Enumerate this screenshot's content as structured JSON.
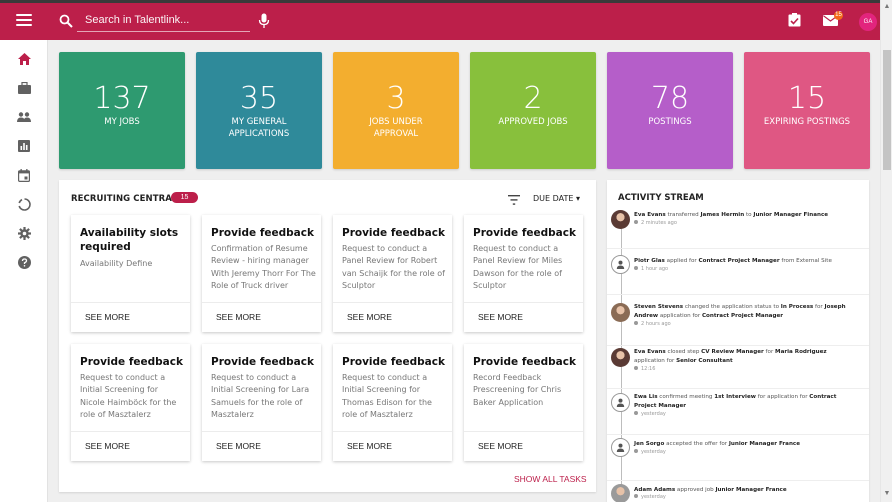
{
  "topbar": {
    "search_placeholder": "Search in Talentlink...",
    "mail_badge": "15",
    "user_initials": "GA",
    "accent_color": "#bc1f4a"
  },
  "sidebar": {
    "items": [
      {
        "icon": "home-icon",
        "active": true
      },
      {
        "icon": "briefcase-icon"
      },
      {
        "icon": "people-icon"
      },
      {
        "icon": "reports-icon"
      },
      {
        "icon": "calendar-icon"
      },
      {
        "icon": "loading-circle-icon"
      },
      {
        "icon": "gear-icon"
      },
      {
        "icon": "help-icon"
      }
    ]
  },
  "stats": [
    {
      "value": "137",
      "label": "MY JOBS",
      "color": "#2e9a70"
    },
    {
      "value": "35",
      "label": "MY GENERAL APPLICATIONS",
      "color": "#2f8a9a"
    },
    {
      "value": "3",
      "label": "JOBS UNDER APPROVAL",
      "color": "#f3ae2f"
    },
    {
      "value": "2",
      "label": "APPROVED JOBS",
      "color": "#88c03c"
    },
    {
      "value": "78",
      "label": "POSTINGS",
      "color": "#b55ec9"
    },
    {
      "value": "15",
      "label": "EXPIRING POSTINGS",
      "color": "#df5783"
    }
  ],
  "recruiting_central": {
    "title": "RECRUITING CENTRAL",
    "count": "15",
    "sort_label": "DUE DATE ▾",
    "show_all_label": "SHOW ALL TASKS",
    "see_more_label": "SEE MORE",
    "tasks": [
      {
        "title": "Availability slots required",
        "desc": "Availability Define"
      },
      {
        "title": "Provide feedback",
        "desc": "Confirmation of Resume Review - hiring manager With Jeremy Thorr For The Role of Truck driver"
      },
      {
        "title": "Provide feedback",
        "desc": "Request to conduct a Panel Review for Robert van Schaijk for the role of Sculptor"
      },
      {
        "title": "Provide feedback",
        "desc": "Request to conduct a Panel Review for Miles Dawson for the role of Sculptor"
      },
      {
        "title": "Provide feedback",
        "desc": "Request to conduct a Initial Screening for Nicole Haimböck for the role of Masztalerz"
      },
      {
        "title": "Provide feedback",
        "desc": "Request to conduct a Initial Screening for Lara Samuels for the role of Masztalerz"
      },
      {
        "title": "Provide feedback",
        "desc": "Request to conduct a Initial Screening for Thomas Edison for the role of Masztalerz"
      },
      {
        "title": "Provide feedback",
        "desc": "Record Feedback Prescreening for Chris Baker Application"
      }
    ]
  },
  "activity_stream": {
    "title": "ACTIVITY STREAM",
    "items": [
      {
        "actor": "Eva Evans",
        "parts": [
          " transferred ",
          "James Hermin",
          " to ",
          "Junior Manager Finance"
        ],
        "time": "2 minutes ago",
        "avatar": "photo-woman"
      },
      {
        "actor": "Piotr Glas",
        "parts": [
          " applied for ",
          "Contract Project Manager",
          " from External Site",
          ""
        ],
        "time": "1 hour ago",
        "avatar": "person-icon"
      },
      {
        "actor": "Steven Stevens",
        "parts": [
          " changed the application status to ",
          "In Process",
          " for ",
          "Joseph Andrew",
          " application for ",
          "Contract Project Manager"
        ],
        "time": "2 hours ago",
        "avatar": "photo-man"
      },
      {
        "actor": "Eva Evans",
        "parts": [
          " closed step ",
          "CV Review Manager",
          " for ",
          "Maria Rodriguez",
          " application for ",
          "Senior Consultant"
        ],
        "time": "12:16",
        "avatar": "photo-woman"
      },
      {
        "actor": "Ewa Lis",
        "parts": [
          " confirmed meeting ",
          "1st Interview",
          " for application for ",
          "Contract Project Manager"
        ],
        "time": "yesterday",
        "avatar": "person-icon"
      },
      {
        "actor": "Jen Sorgo",
        "parts": [
          " accepted the offer for ",
          "Junior Manager France"
        ],
        "time": "yesterday",
        "avatar": "person-icon"
      },
      {
        "actor": "Adam Adams",
        "parts": [
          " approved job ",
          "Junior Manager France"
        ],
        "time": "yesterday",
        "avatar": "photo-crest"
      }
    ]
  }
}
